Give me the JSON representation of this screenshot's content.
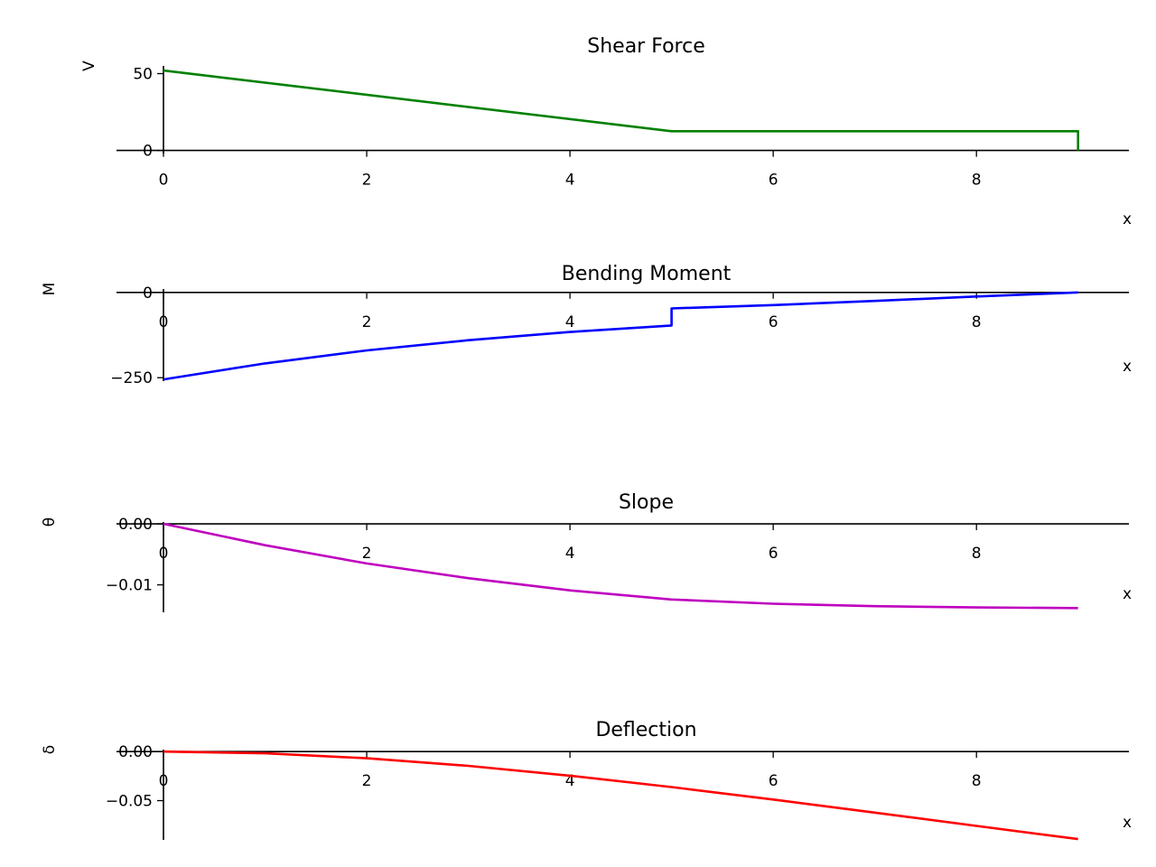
{
  "chart_data": [
    {
      "type": "line",
      "title": "Shear Force",
      "xlabel": "x",
      "ylabel": "V",
      "xlim": [
        0,
        9.5
      ],
      "ylim": [
        -2,
        55
      ],
      "xticks": [
        0,
        2,
        4,
        6,
        8
      ],
      "xtick_labels": [
        "0",
        "2",
        "4",
        "6",
        "8"
      ],
      "yticks": [
        0,
        50
      ],
      "ytick_labels": [
        "0",
        "50"
      ],
      "color": "#008000",
      "grid": false,
      "series": [
        {
          "x": [
            0,
            5,
            5,
            9,
            9
          ],
          "y": [
            52,
            12.5,
            12.5,
            12.5,
            0
          ]
        }
      ]
    },
    {
      "type": "line",
      "title": "Bending Moment",
      "xlabel": "x",
      "ylabel": "M",
      "xlim": [
        0,
        9.5
      ],
      "ylim": [
        -260,
        10
      ],
      "xticks": [
        0,
        2,
        4,
        6,
        8
      ],
      "xtick_labels": [
        "0",
        "2",
        "4",
        "6",
        "8"
      ],
      "yticks": [
        0,
        -250
      ],
      "ytick_labels": [
        "0",
        "−250"
      ],
      "color": "#0000ff",
      "grid": false,
      "series": [
        {
          "x": [
            0,
            1,
            2,
            3,
            4,
            5,
            5,
            6,
            7,
            8,
            9
          ],
          "y": [
            -255,
            -208,
            -170,
            -140,
            -116,
            -97,
            -47,
            -37,
            -25,
            -12,
            0
          ]
        }
      ]
    },
    {
      "type": "line",
      "title": "Slope",
      "xlabel": "x",
      "ylabel": "θ",
      "xlim": [
        0,
        9.5
      ],
      "ylim": [
        -0.0145,
        0.0003
      ],
      "xticks": [
        0,
        2,
        4,
        6,
        8
      ],
      "xtick_labels": [
        "0",
        "2",
        "4",
        "6",
        "8"
      ],
      "yticks": [
        0,
        -0.01
      ],
      "ytick_labels": [
        "0.00",
        "−0.01"
      ],
      "color": "#bf00bf",
      "grid": false,
      "series": [
        {
          "x": [
            0,
            1,
            2,
            3,
            4,
            5,
            6,
            7,
            8,
            9
          ],
          "y": [
            0,
            -0.0035,
            -0.0065,
            -0.0089,
            -0.0109,
            -0.0124,
            -0.0131,
            -0.0135,
            -0.0137,
            -0.0138
          ]
        }
      ]
    },
    {
      "type": "line",
      "title": "Deflection",
      "xlabel": "x",
      "ylabel": "δ",
      "xlim": [
        0,
        9.5
      ],
      "ylim": [
        -0.09,
        0.002
      ],
      "xticks": [
        0,
        2,
        4,
        6,
        8
      ],
      "xtick_labels": [
        "0",
        "2",
        "4",
        "6",
        "8"
      ],
      "yticks": [
        0,
        -0.05
      ],
      "ytick_labels": [
        "0.00",
        "−0.05"
      ],
      "color": "#ff0000",
      "grid": false,
      "series": [
        {
          "x": [
            0,
            1,
            2,
            3,
            4,
            5,
            6,
            7,
            8,
            9
          ],
          "y": [
            0,
            -0.0018,
            -0.0068,
            -0.0146,
            -0.0246,
            -0.0362,
            -0.0489,
            -0.0622,
            -0.0757,
            -0.0892
          ]
        }
      ]
    }
  ]
}
